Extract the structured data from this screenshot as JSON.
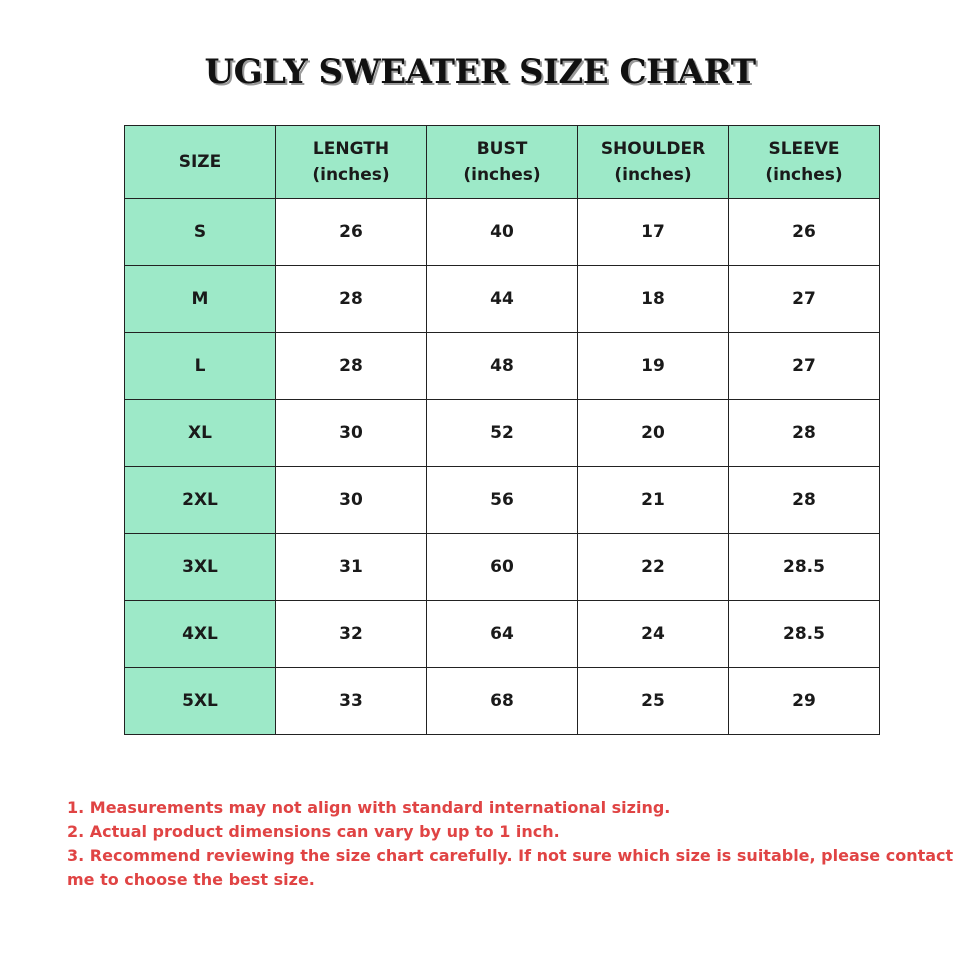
{
  "header": {
    "title": "UGLY SWEATER SIZE CHART"
  },
  "table": {
    "columns": [
      [
        "SIZE"
      ],
      [
        "LENGTH",
        "(inches)"
      ],
      [
        "BUST",
        "(inches)"
      ],
      [
        "SHOULDER",
        "(inches)"
      ],
      [
        "SLEEVE",
        "(inches)"
      ]
    ],
    "rows": [
      [
        "S",
        "26",
        "40",
        "17",
        "26"
      ],
      [
        "M",
        "28",
        "44",
        "18",
        "27"
      ],
      [
        "L",
        "28",
        "48",
        "19",
        "27"
      ],
      [
        "XL",
        "30",
        "52",
        "20",
        "28"
      ],
      [
        "2XL",
        "30",
        "56",
        "21",
        "28"
      ],
      [
        "3XL",
        "31",
        "60",
        "22",
        "28.5"
      ],
      [
        "4XL",
        "32",
        "64",
        "24",
        "28.5"
      ],
      [
        "5XL",
        "33",
        "68",
        "25",
        "29"
      ]
    ]
  },
  "notes": [
    "1. Measurements may not align with standard international sizing.",
    "2. Actual product dimensions can vary by up to 1 inch.",
    "3. Recommend reviewing the size chart carefully. If not sure which size is suitable, please contact me to choose the best size."
  ]
}
